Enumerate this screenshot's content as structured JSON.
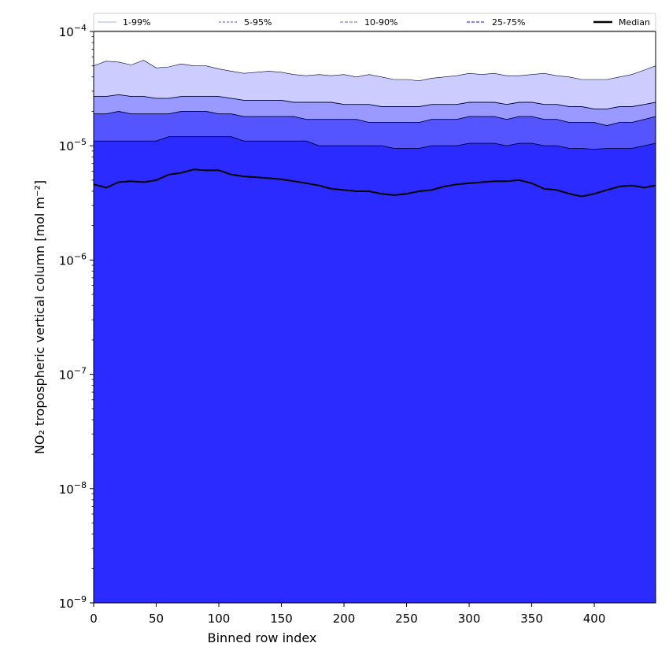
{
  "chart_data": {
    "type": "area",
    "title": "",
    "xlabel": "Binned row index",
    "ylabel": "NO₂ tropospheric vertical column [mol m⁻²]",
    "xlim": [
      0,
      449
    ],
    "ylim": [
      1e-09,
      0.0001
    ],
    "yscale": "log",
    "grid": false,
    "legend_position": "top",
    "x_ticks": [
      0,
      50,
      100,
      150,
      200,
      250,
      300,
      350,
      400
    ],
    "y_ticks": [
      {
        "value": 1e-09,
        "mantissa": "10",
        "exponent": "−9"
      },
      {
        "value": 1e-08,
        "mantissa": "10",
        "exponent": "−8"
      },
      {
        "value": 1e-07,
        "mantissa": "10",
        "exponent": "−7"
      },
      {
        "value": 1e-06,
        "mantissa": "10",
        "exponent": "−6"
      },
      {
        "value": 1e-05,
        "mantissa": "10",
        "exponent": "−5"
      },
      {
        "value": 0.0001,
        "mantissa": "10",
        "exponent": "−4"
      }
    ],
    "x": [
      0,
      10,
      20,
      30,
      40,
      50,
      60,
      70,
      80,
      90,
      100,
      110,
      120,
      130,
      140,
      150,
      160,
      170,
      180,
      190,
      200,
      210,
      220,
      230,
      240,
      250,
      260,
      270,
      280,
      290,
      300,
      310,
      320,
      330,
      340,
      350,
      360,
      370,
      380,
      390,
      400,
      410,
      420,
      430,
      440,
      449
    ],
    "series": [
      {
        "name": "1-99%",
        "band": "percentile_01_99",
        "lower": [
          1e-09,
          1e-09,
          1e-09,
          1e-09,
          1e-09,
          1.4e-08,
          1e-09,
          1.1e-07,
          4.2e-07,
          4.7e-07,
          4.7e-07,
          1e-09,
          1e-09,
          1e-09,
          1e-09,
          1e-09,
          1e-09,
          1e-09,
          1e-09,
          1e-09,
          1e-09,
          1e-09,
          1e-09,
          1e-09,
          1e-09,
          1e-09,
          1e-09,
          1e-09,
          1e-09,
          1e-09,
          1e-09,
          1e-09,
          1e-09,
          1e-09,
          3e-08,
          1e-09,
          1e-09,
          1e-09,
          1e-09,
          1e-09,
          1e-09,
          1e-09,
          1.4e-08,
          1e-09,
          1e-09,
          1e-09
        ],
        "upper": [
          5e-05,
          5.5e-05,
          5.4e-05,
          5.1e-05,
          5.6e-05,
          4.8e-05,
          4.9e-05,
          5.2e-05,
          5e-05,
          5e-05,
          4.7e-05,
          4.5e-05,
          4.3e-05,
          4.4e-05,
          4.5e-05,
          4.4e-05,
          4.2e-05,
          4.1e-05,
          4.2e-05,
          4.1e-05,
          4.2e-05,
          4e-05,
          4.2e-05,
          4e-05,
          3.8e-05,
          3.8e-05,
          3.7e-05,
          3.9e-05,
          4e-05,
          4.1e-05,
          4.3e-05,
          4.2e-05,
          4.3e-05,
          4.1e-05,
          4.1e-05,
          4.2e-05,
          4.3e-05,
          4.1e-05,
          4e-05,
          3.8e-05,
          3.8e-05,
          3.8e-05,
          4e-05,
          4.2e-05,
          4.6e-05,
          5e-05
        ]
      },
      {
        "name": "5-95%",
        "band": "percentile_05_95",
        "lower": [
          1e-09,
          1e-09,
          1e-09,
          1e-09,
          1e-09,
          1e-09,
          1e-09,
          2e-08,
          3e-07,
          3.4e-07,
          4e-07,
          1e-09,
          1e-09,
          1e-09,
          1e-09,
          1e-09,
          1e-09,
          1e-09,
          1e-09,
          1e-09,
          1e-09,
          1e-09,
          1e-09,
          1e-09,
          1e-09,
          1e-09,
          1e-09,
          1e-09,
          1e-09,
          1e-09,
          1e-09,
          1e-09,
          1e-09,
          1e-09,
          1e-09,
          1e-09,
          1e-09,
          1e-09,
          1e-09,
          1e-09,
          1e-09,
          1e-09,
          1e-09,
          1e-09,
          1e-09,
          1e-09
        ],
        "upper": [
          2.7e-05,
          2.7e-05,
          2.8e-05,
          2.7e-05,
          2.7e-05,
          2.6e-05,
          2.6e-05,
          2.7e-05,
          2.7e-05,
          2.7e-05,
          2.7e-05,
          2.6e-05,
          2.5e-05,
          2.5e-05,
          2.5e-05,
          2.5e-05,
          2.4e-05,
          2.4e-05,
          2.4e-05,
          2.4e-05,
          2.3e-05,
          2.3e-05,
          2.3e-05,
          2.2e-05,
          2.2e-05,
          2.2e-05,
          2.2e-05,
          2.3e-05,
          2.3e-05,
          2.3e-05,
          2.4e-05,
          2.4e-05,
          2.4e-05,
          2.3e-05,
          2.4e-05,
          2.4e-05,
          2.3e-05,
          2.3e-05,
          2.2e-05,
          2.2e-05,
          2.1e-05,
          2.1e-05,
          2.2e-05,
          2.2e-05,
          2.3e-05,
          2.4e-05
        ]
      },
      {
        "name": "10-90%",
        "band": "percentile_10_90",
        "lower": [
          1e-09,
          1e-09,
          1e-09,
          1e-09,
          1e-09,
          1e-09,
          1e-09,
          1e-09,
          1e-09,
          1e-09,
          1e-09,
          1e-09,
          1e-09,
          1e-09,
          1e-09,
          1e-09,
          1e-09,
          1e-09,
          1e-09,
          1e-09,
          1e-09,
          1e-09,
          1e-09,
          1e-09,
          1e-09,
          1e-09,
          1e-09,
          1e-09,
          1e-09,
          1e-09,
          1e-09,
          1e-09,
          1e-09,
          1e-09,
          1e-09,
          1e-09,
          1e-09,
          1e-09,
          1e-09,
          1e-09,
          1e-09,
          1e-09,
          1e-09,
          1e-09,
          1e-09,
          1e-09
        ],
        "upper": [
          1.9e-05,
          1.9e-05,
          2e-05,
          1.9e-05,
          1.9e-05,
          1.9e-05,
          1.9e-05,
          2e-05,
          2e-05,
          2e-05,
          1.9e-05,
          1.9e-05,
          1.8e-05,
          1.8e-05,
          1.8e-05,
          1.8e-05,
          1.8e-05,
          1.7e-05,
          1.7e-05,
          1.7e-05,
          1.7e-05,
          1.7e-05,
          1.6e-05,
          1.6e-05,
          1.6e-05,
          1.6e-05,
          1.6e-05,
          1.7e-05,
          1.7e-05,
          1.7e-05,
          1.8e-05,
          1.8e-05,
          1.8e-05,
          1.7e-05,
          1.8e-05,
          1.8e-05,
          1.7e-05,
          1.7e-05,
          1.6e-05,
          1.6e-05,
          1.6e-05,
          1.5e-05,
          1.6e-05,
          1.6e-05,
          1.7e-05,
          1.8e-05
        ]
      },
      {
        "name": "25-75%",
        "band": "percentile_25_75",
        "lower": [
          1e-09,
          1e-09,
          1e-09,
          1e-09,
          1e-09,
          1e-09,
          1e-09,
          1e-09,
          1e-09,
          1e-09,
          1e-09,
          1e-09,
          1e-09,
          1e-09,
          1e-09,
          1e-09,
          1e-09,
          1e-09,
          1e-09,
          1e-09,
          1e-09,
          1e-09,
          1e-09,
          1e-09,
          1e-09,
          1e-09,
          1e-09,
          1e-09,
          1e-09,
          1e-09,
          1e-09,
          1e-09,
          1e-09,
          1e-09,
          1e-09,
          1e-09,
          1e-09,
          1e-09,
          1e-09,
          1e-09,
          1e-09,
          1e-09,
          1e-09,
          1e-09,
          1e-09,
          1e-09
        ],
        "upper": [
          1.1e-05,
          1.1e-05,
          1.1e-05,
          1.1e-05,
          1.1e-05,
          1.1e-05,
          1.2e-05,
          1.2e-05,
          1.2e-05,
          1.2e-05,
          1.2e-05,
          1.2e-05,
          1.1e-05,
          1.1e-05,
          1.1e-05,
          1.1e-05,
          1.1e-05,
          1.1e-05,
          1e-05,
          1e-05,
          1e-05,
          1e-05,
          1e-05,
          1e-05,
          9.5e-06,
          9.5e-06,
          9.5e-06,
          1e-05,
          1e-05,
          1e-05,
          1.05e-05,
          1.05e-05,
          1.05e-05,
          1e-05,
          1.05e-05,
          1.05e-05,
          1e-05,
          1e-05,
          9.5e-06,
          9.5e-06,
          9.3e-06,
          9.5e-06,
          9.5e-06,
          9.5e-06,
          1e-05,
          1.05e-05
        ]
      },
      {
        "name": "Median",
        "band": "median",
        "values": [
          4.6e-06,
          4.3e-06,
          4.8e-06,
          4.9e-06,
          4.8e-06,
          5e-06,
          5.6e-06,
          5.8e-06,
          6.2e-06,
          6.1e-06,
          6.1e-06,
          5.6e-06,
          5.4e-06,
          5.3e-06,
          5.2e-06,
          5.1e-06,
          4.9e-06,
          4.7e-06,
          4.5e-06,
          4.2e-06,
          4.1e-06,
          4e-06,
          4e-06,
          3.8e-06,
          3.7e-06,
          3.8e-06,
          4e-06,
          4.1e-06,
          4.4e-06,
          4.6e-06,
          4.7e-06,
          4.8e-06,
          4.9e-06,
          4.9e-06,
          5e-06,
          4.7e-06,
          4.2e-06,
          4.1e-06,
          3.8e-06,
          3.6e-06,
          3.8e-06,
          4.1e-06,
          4.4e-06,
          4.5e-06,
          4.3e-06,
          4.5e-06
        ]
      }
    ]
  },
  "legend": [
    {
      "label": "1-99%",
      "color": "#c9c9f5",
      "dash": "none"
    },
    {
      "label": "5-95%",
      "color": "#8f8ff0",
      "dash": "3,2"
    },
    {
      "label": "10-90%",
      "color": "#9696f5",
      "dash": "4,2"
    },
    {
      "label": "25-75%",
      "color": "#5a5af0",
      "dash": "4,2"
    },
    {
      "label": "Median",
      "color": "#000000",
      "dash": "none"
    }
  ],
  "colors": {
    "band_01_99": "#ccccff",
    "band_05_95": "#9999ff",
    "band_10_90": "#5555ff",
    "band_25_75": "#2b2bff",
    "median": "#000000",
    "outline": "#000033"
  }
}
